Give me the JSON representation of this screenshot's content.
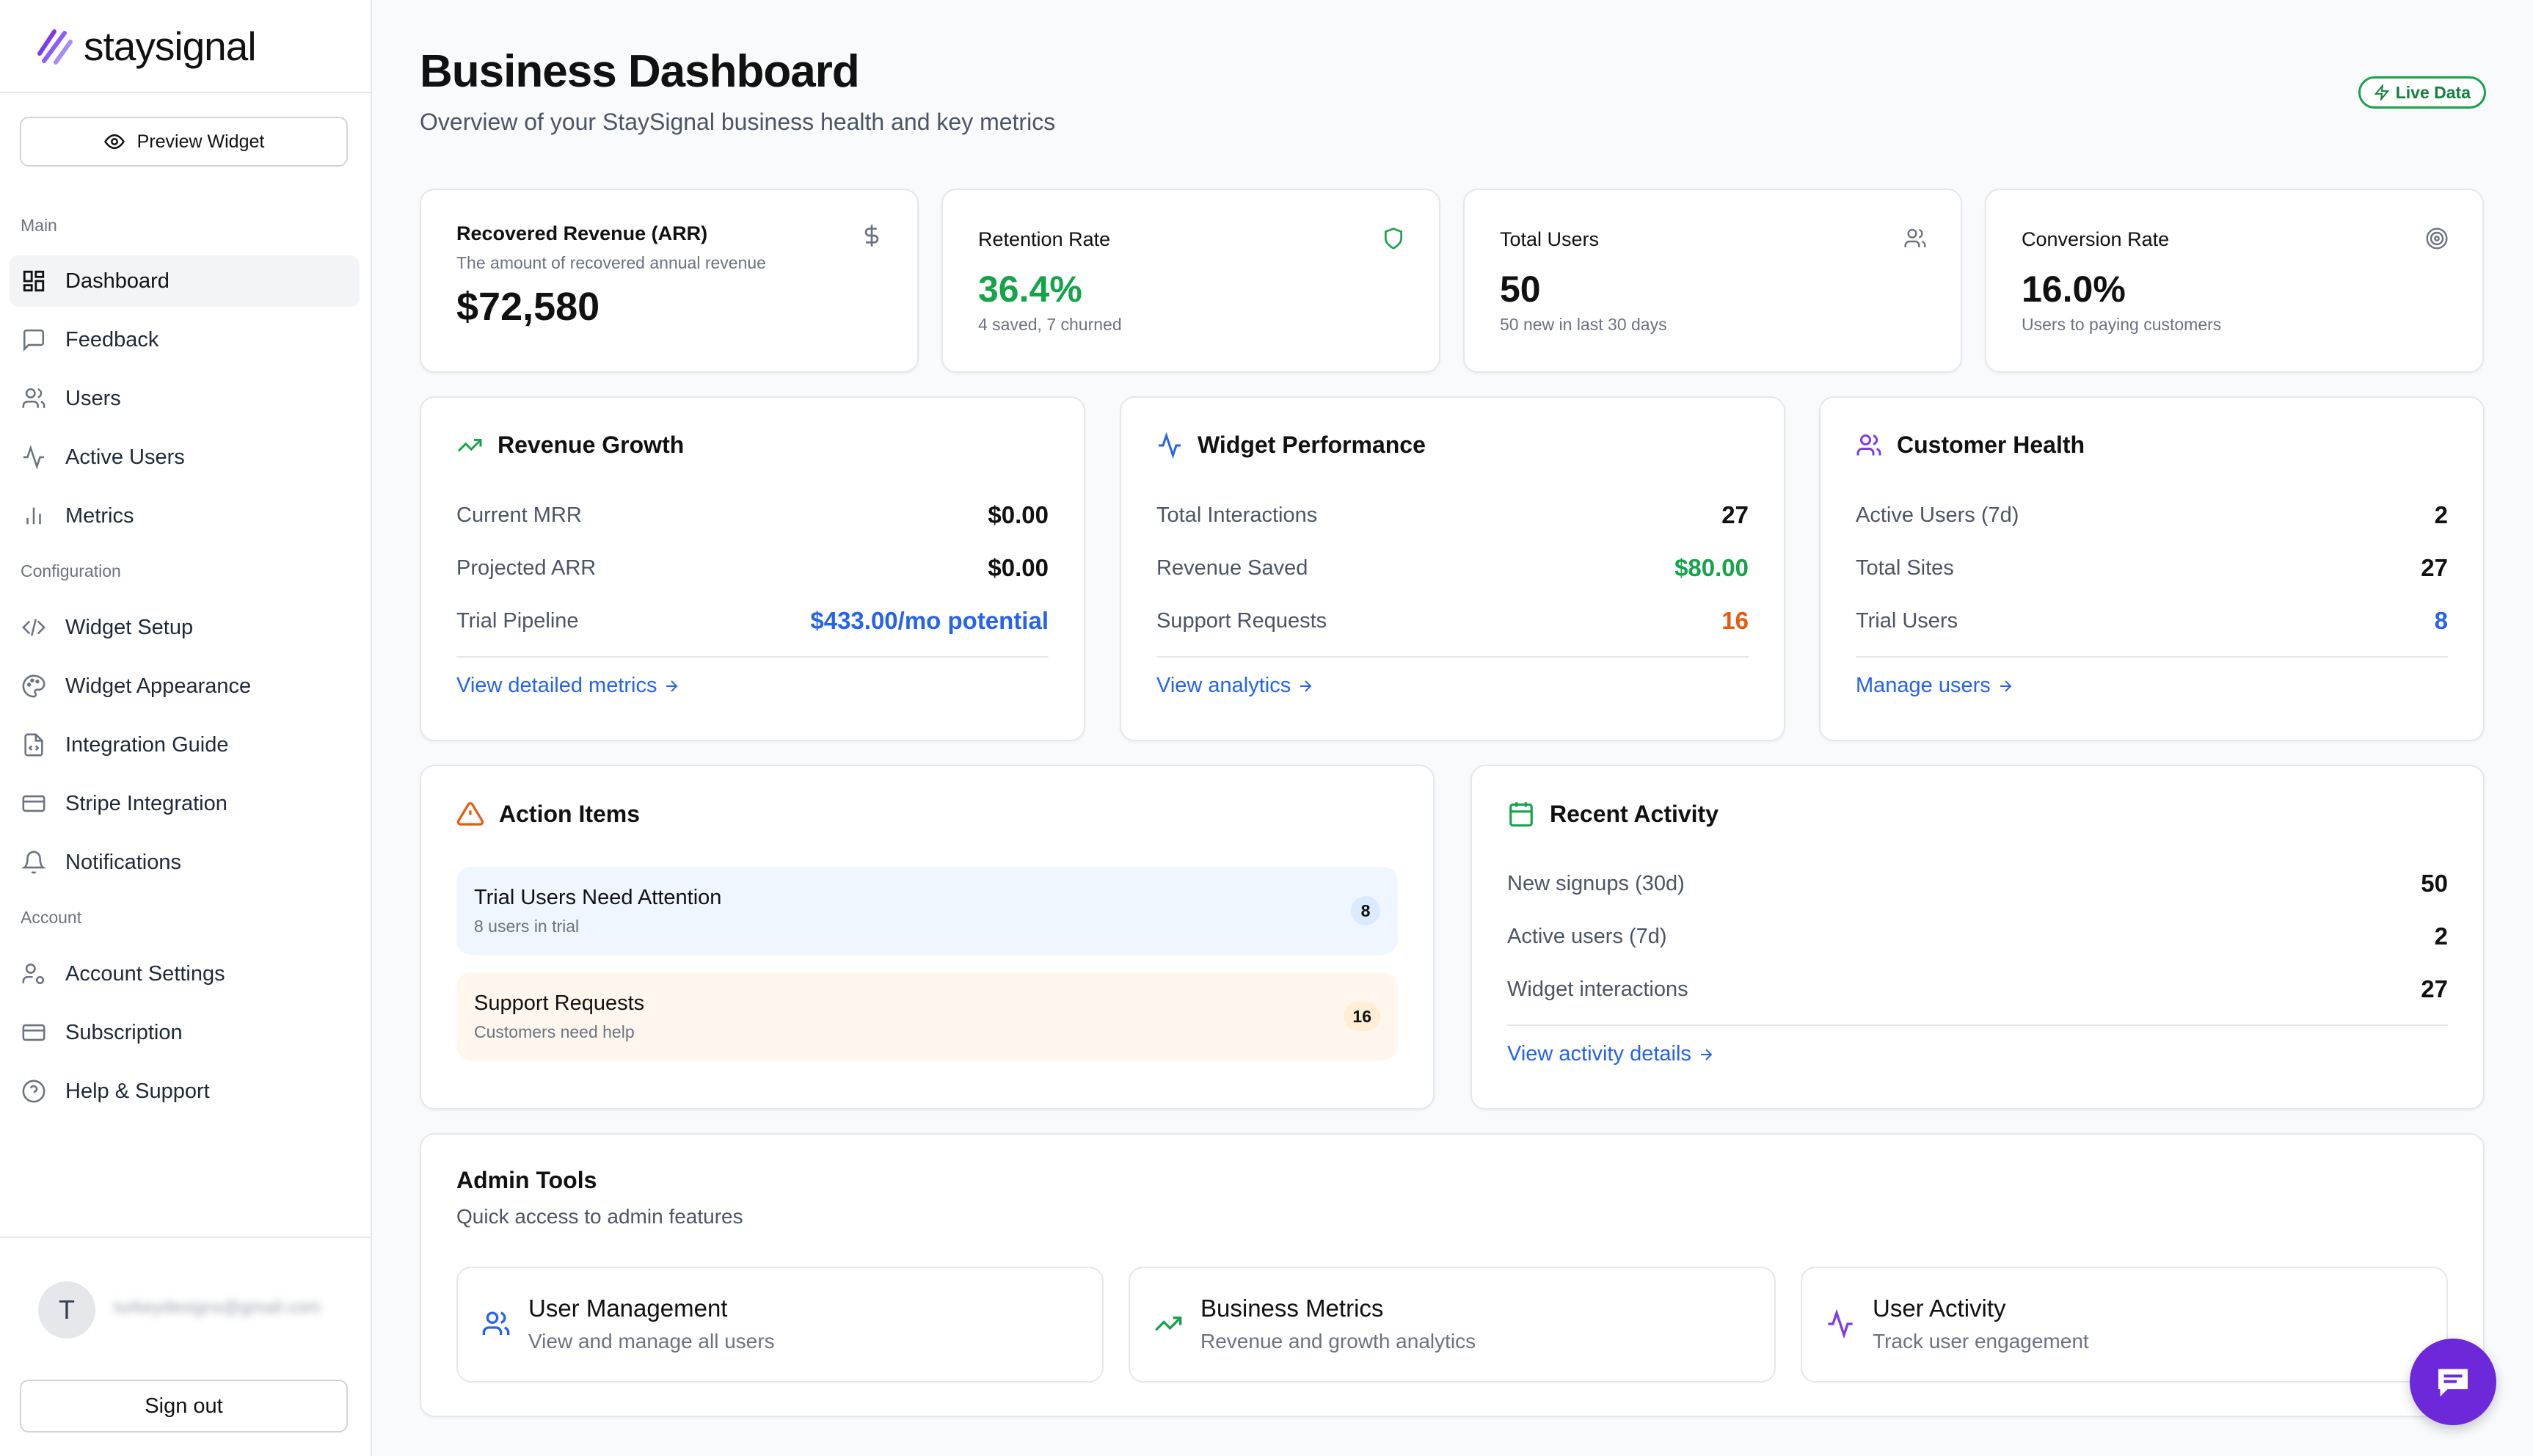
{
  "brand": {
    "name": "staysignal",
    "accent": "#7c3aed"
  },
  "sidebar": {
    "preview_label": "Preview Widget",
    "sections": {
      "main": "Main",
      "configuration": "Configuration",
      "account": "Account"
    },
    "items": [
      {
        "label": "Dashboard",
        "icon": "dashboard-icon"
      },
      {
        "label": "Feedback",
        "icon": "message-icon"
      },
      {
        "label": "Users",
        "icon": "users-icon"
      },
      {
        "label": "Active Users",
        "icon": "activity-icon"
      },
      {
        "label": "Metrics",
        "icon": "bar-chart-icon"
      },
      {
        "label": "Widget Setup",
        "icon": "code-icon"
      },
      {
        "label": "Widget Appearance",
        "icon": "palette-icon"
      },
      {
        "label": "Integration Guide",
        "icon": "file-code-icon"
      },
      {
        "label": "Stripe Integration",
        "icon": "credit-card-icon"
      },
      {
        "label": "Notifications",
        "icon": "bell-icon"
      },
      {
        "label": "Account Settings",
        "icon": "user-cog-icon"
      },
      {
        "label": "Subscription",
        "icon": "credit-card-icon"
      },
      {
        "label": "Help & Support",
        "icon": "help-circle-icon"
      }
    ],
    "user": {
      "initial": "T",
      "email": "turkeydesigns@gmail.com"
    },
    "signout_label": "Sign out"
  },
  "header": {
    "title": "Business Dashboard",
    "subtitle": "Overview of your StaySignal business health and key metrics",
    "live_label": "Live Data"
  },
  "stats": [
    {
      "title": "Recovered Revenue (ARR)",
      "desc": "The amount of recovered annual revenue",
      "value": "$72,580",
      "icon": "dollar-icon"
    },
    {
      "title": "Retention Rate",
      "value": "36.4%",
      "sub": "4 saved, 7 churned",
      "icon": "shield-icon",
      "color": "#16a34a"
    },
    {
      "title": "Total Users",
      "value": "50",
      "sub": "50 new in last 30 days",
      "icon": "users-icon"
    },
    {
      "title": "Conversion Rate",
      "value": "16.0%",
      "sub": "Users to paying customers",
      "icon": "target-icon"
    }
  ],
  "revenue_growth": {
    "title": "Revenue Growth",
    "rows": [
      {
        "label": "Current MRR",
        "value": "$0.00"
      },
      {
        "label": "Projected ARR",
        "value": "$0.00"
      },
      {
        "label": "Trial Pipeline",
        "value": "$433.00/mo potential"
      }
    ],
    "link": "View detailed metrics"
  },
  "widget_performance": {
    "title": "Widget Performance",
    "rows": [
      {
        "label": "Total Interactions",
        "value": "27"
      },
      {
        "label": "Revenue Saved",
        "value": "$80.00"
      },
      {
        "label": "Support Requests",
        "value": "16"
      }
    ],
    "link": "View analytics"
  },
  "customer_health": {
    "title": "Customer Health",
    "rows": [
      {
        "label": "Active Users (7d)",
        "value": "2"
      },
      {
        "label": "Total Sites",
        "value": "27"
      },
      {
        "label": "Trial Users",
        "value": "8"
      }
    ],
    "link": "Manage users"
  },
  "action_items": {
    "title": "Action Items",
    "items": [
      {
        "title": "Trial Users Need Attention",
        "sub": "8 users in trial",
        "count": "8"
      },
      {
        "title": "Support Requests",
        "sub": "Customers need help",
        "count": "16"
      }
    ]
  },
  "recent_activity": {
    "title": "Recent Activity",
    "rows": [
      {
        "label": "New signups (30d)",
        "value": "50"
      },
      {
        "label": "Active users (7d)",
        "value": "2"
      },
      {
        "label": "Widget interactions",
        "value": "27"
      }
    ],
    "link": "View activity details"
  },
  "admin_tools": {
    "title": "Admin Tools",
    "subtitle": "Quick access to admin features",
    "tools": [
      {
        "title": "User Management",
        "sub": "View and manage all users",
        "icon": "users-icon"
      },
      {
        "title": "Business Metrics",
        "sub": "Revenue and growth analytics",
        "icon": "trending-up-icon"
      },
      {
        "title": "User Activity",
        "sub": "Track user engagement",
        "icon": "activity-icon"
      }
    ]
  },
  "colors": {
    "green": "#16a34a",
    "blue": "#2563eb",
    "orange": "#ea580c",
    "purple": "#7c3aed"
  }
}
